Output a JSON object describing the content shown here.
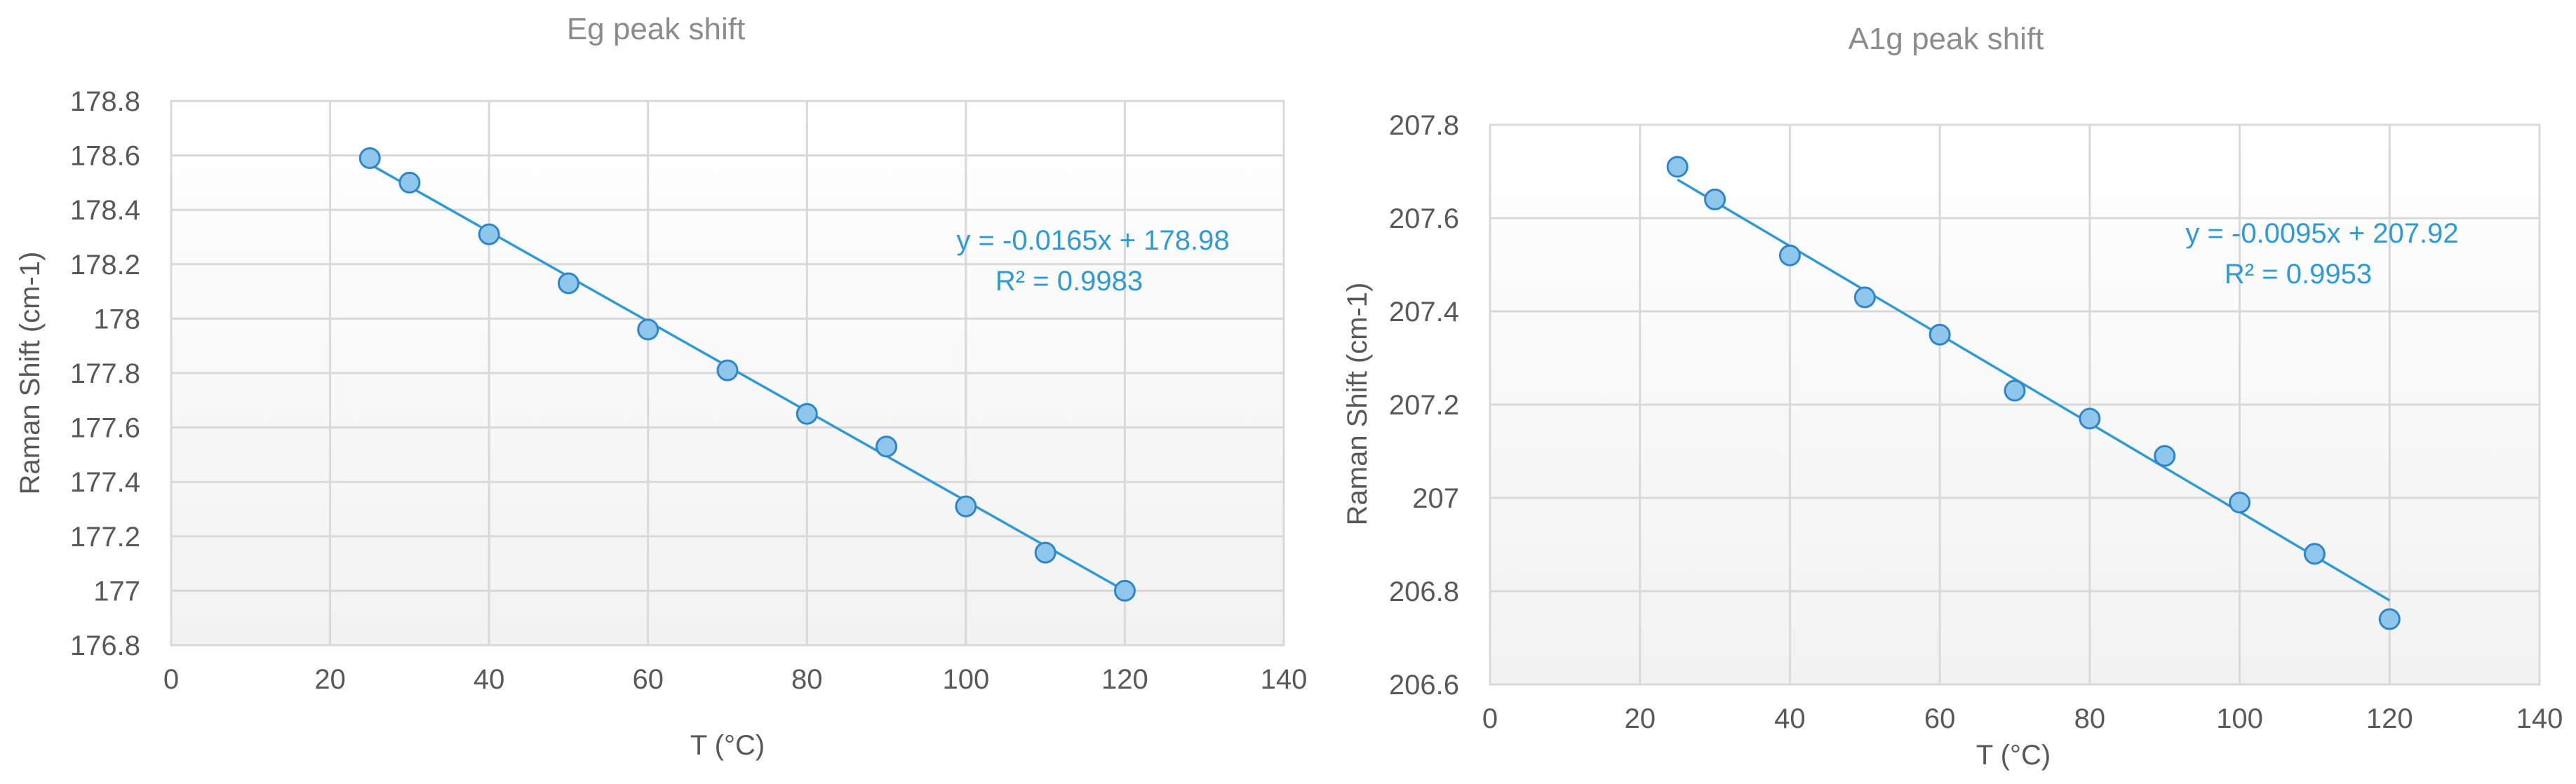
{
  "colors": {
    "trendline": "#2e9bd6",
    "marker_fill": "#8ec6ec",
    "marker_stroke": "#2e86c8",
    "grid": "#d9d9d9",
    "plot_gradient_top": "#ffffff",
    "plot_gradient_bottom": "#f2f2f2"
  },
  "chart_data": [
    {
      "type": "scatter",
      "title": "Eg peak shift",
      "xlabel": "T (°C)",
      "ylabel": "Raman Shift (cm-1)",
      "xlim": [
        0,
        140
      ],
      "ylim": [
        176.8,
        178.8
      ],
      "xticks": [
        0,
        20,
        40,
        60,
        80,
        100,
        120,
        140
      ],
      "xtick_labels": [
        "0",
        "20",
        "40",
        "60",
        "80",
        "100",
        "120",
        "140"
      ],
      "yticks": [
        176.8,
        177,
        177.2,
        177.4,
        177.6,
        177.8,
        178,
        178.2,
        178.4,
        178.6,
        178.8
      ],
      "ytick_labels": [
        "176.8",
        "177",
        "177.2",
        "177.4",
        "177.6",
        "177.8",
        "178",
        "178.2",
        "178.4",
        "178.6",
        "178.8"
      ],
      "grid": true,
      "x": [
        25,
        30,
        40,
        50,
        60,
        70,
        80,
        90,
        100,
        110,
        120
      ],
      "y": [
        178.59,
        178.5,
        178.31,
        178.13,
        177.96,
        177.81,
        177.65,
        177.53,
        177.31,
        177.14,
        177.0
      ],
      "trendline": {
        "slope": -0.0165,
        "intercept": 178.98,
        "x_range": [
          25,
          120
        ],
        "equation": "y = -0.0165x + 178.98",
        "r2": "R² = 0.9983"
      }
    },
    {
      "type": "scatter",
      "title": "A1g peak shift",
      "xlabel": "T (°C)",
      "ylabel": "Raman Shift (cm-1)",
      "xlim": [
        0,
        140
      ],
      "ylim": [
        206.6,
        207.8
      ],
      "xticks": [
        0,
        20,
        40,
        60,
        80,
        100,
        120,
        140
      ],
      "xtick_labels": [
        "0",
        "20",
        "40",
        "60",
        "80",
        "100",
        "120",
        "140"
      ],
      "yticks": [
        206.6,
        206.8,
        207,
        207.2,
        207.4,
        207.6,
        207.8
      ],
      "ytick_labels": [
        "206.6",
        "206.8",
        "207",
        "207.2",
        "207.4",
        "207.6",
        "207.8"
      ],
      "grid": true,
      "x": [
        25,
        30,
        40,
        50,
        60,
        70,
        80,
        90,
        100,
        110,
        120
      ],
      "y": [
        207.71,
        207.64,
        207.52,
        207.43,
        207.35,
        207.23,
        207.17,
        207.09,
        206.99,
        206.88,
        206.74
      ],
      "trendline": {
        "slope": -0.0095,
        "intercept": 207.92,
        "x_range": [
          25,
          120
        ],
        "equation": "y = -0.0095x + 207.92",
        "r2": "R² = 0.9953"
      }
    }
  ]
}
